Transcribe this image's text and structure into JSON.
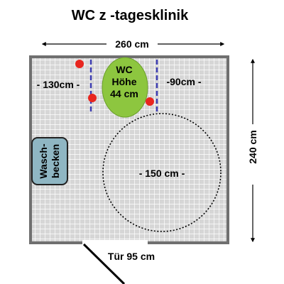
{
  "title": "WC z -tagesklinik",
  "width_label": "260 cm",
  "height_label": "240 cm",
  "wc_label_line1": "WC",
  "wc_label_line2": "Höhe",
  "wc_label_line3": "44 cm",
  "left_clearance_label": "- 130cm -",
  "right_clearance_label": "-90cm -",
  "turning_circle_label": "- 150 cm -",
  "sink_label_line1": "Wasch-",
  "sink_label_line2": "becken",
  "door_label": "Tür 95 cm",
  "colors": {
    "floor": "#d8d8d8",
    "wall": "#707070",
    "wc": "#8dc63f",
    "sink": "#8fb6c3",
    "grab_bar_dot": "#e8261f",
    "clearance_line": "#3b3bb0"
  }
}
